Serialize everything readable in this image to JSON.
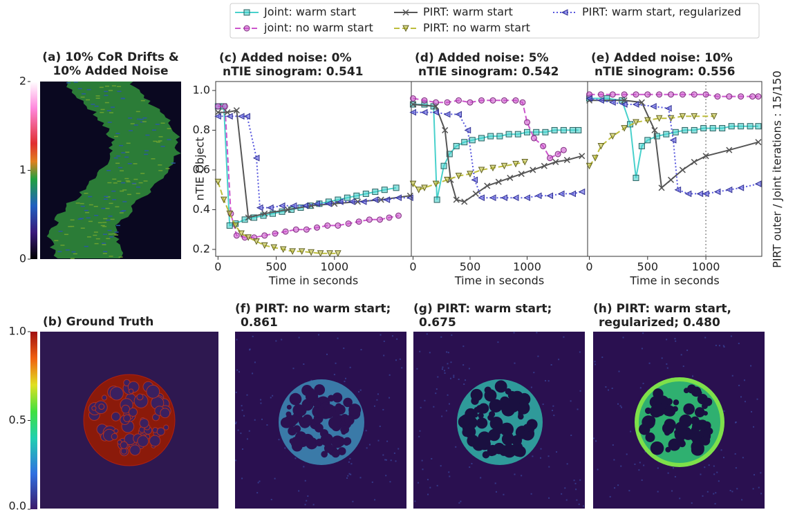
{
  "chart_data": [
    {
      "type": "line",
      "title": [
        "(c) Added noise: 0%",
        "nTIE sinogram: 0.541"
      ],
      "xlabel": "Time in seconds",
      "ylabel": "nTIE Object",
      "xlim": [
        -20,
        1660
      ],
      "ylim": [
        0.165,
        1.045
      ],
      "xticks": [
        0,
        500,
        1000
      ],
      "yticks": [
        0.2,
        0.4,
        0.6,
        0.8,
        {
          "value": 1,
          "label": "1.0"
        }
      ],
      "series": [
        {
          "name": "Joint: warm start",
          "color": "#48d1cc",
          "marker": "square",
          "dash": "solid",
          "x": [
            0,
            50,
            100,
            150,
            230,
            310,
            390,
            470,
            550,
            630,
            710,
            790,
            870,
            950,
            1030,
            1110,
            1190,
            1270,
            1350,
            1430,
            1530
          ],
          "values": [
            0.92,
            0.92,
            0.32,
            0.33,
            0.35,
            0.36,
            0.37,
            0.38,
            0.39,
            0.4,
            0.41,
            0.42,
            0.43,
            0.44,
            0.45,
            0.46,
            0.47,
            0.48,
            0.49,
            0.5,
            0.51
          ]
        },
        {
          "name": "joint: no warm start",
          "color": "#cc55cc",
          "marker": "circle",
          "dash": "dashed",
          "x": [
            0,
            60,
            110,
            160,
            230,
            310,
            400,
            490,
            580,
            670,
            760,
            850,
            940,
            1030,
            1120,
            1210,
            1300,
            1390,
            1470,
            1550
          ],
          "values": [
            0.92,
            0.92,
            0.38,
            0.27,
            0.26,
            0.26,
            0.27,
            0.28,
            0.29,
            0.3,
            0.3,
            0.31,
            0.32,
            0.32,
            0.33,
            0.34,
            0.35,
            0.35,
            0.36,
            0.37
          ]
        },
        {
          "name": "PIRT: warm start",
          "color": "#555555",
          "marker": "cross",
          "dash": "solid",
          "x": [
            0,
            80,
            160,
            260,
            400,
            600,
            800,
            1000,
            1200,
            1400,
            1650
          ],
          "values": [
            0.89,
            0.89,
            0.9,
            0.36,
            0.38,
            0.4,
            0.42,
            0.43,
            0.44,
            0.45,
            0.47
          ]
        },
        {
          "name": "PIRT: no warm start",
          "color": "#bdbd3c",
          "marker": "tri-down",
          "dash": "dashed",
          "x": [
            0,
            50,
            100,
            150,
            200,
            260,
            330,
            400,
            480,
            560,
            640,
            720,
            800,
            880,
            960,
            1030
          ],
          "values": [
            0.54,
            0.45,
            0.38,
            0.32,
            0.28,
            0.26,
            0.24,
            0.22,
            0.21,
            0.2,
            0.19,
            0.19,
            0.185,
            0.18,
            0.18,
            0.18
          ]
        },
        {
          "name": "PIRT: warm start, regularized",
          "color": "#5555dd",
          "marker": "tri-left",
          "dash": "dotted",
          "x": [
            0,
            100,
            200,
            250,
            330,
            360,
            450,
            550,
            650,
            750,
            850,
            950,
            1050,
            1150,
            1250,
            1350,
            1450,
            1550,
            1650
          ],
          "values": [
            0.87,
            0.87,
            0.87,
            0.87,
            0.66,
            0.41,
            0.41,
            0.42,
            0.42,
            0.42,
            0.43,
            0.43,
            0.44,
            0.44,
            0.44,
            0.45,
            0.45,
            0.46,
            0.46
          ]
        }
      ]
    },
    {
      "type": "line",
      "title": [
        "(d) Added noise: 5%",
        "nTIE sinogram: 0.542"
      ],
      "xlabel": "Time in seconds",
      "xlim": [
        -15,
        1530
      ],
      "ylim": [
        0.165,
        1.045
      ],
      "xticks": [
        0,
        500,
        1000
      ],
      "series": [
        {
          "name": "Joint: warm start",
          "color": "#48d1cc",
          "marker": "square",
          "dash": "solid",
          "x": [
            0,
            100,
            180,
            210,
            270,
            320,
            380,
            450,
            520,
            600,
            680,
            760,
            840,
            920,
            1000,
            1080,
            1160,
            1240,
            1320,
            1400,
            1450
          ],
          "values": [
            0.93,
            0.93,
            0.92,
            0.45,
            0.62,
            0.68,
            0.72,
            0.74,
            0.75,
            0.76,
            0.77,
            0.77,
            0.78,
            0.78,
            0.79,
            0.79,
            0.79,
            0.8,
            0.8,
            0.8,
            0.8
          ]
        },
        {
          "name": "joint: no warm start",
          "color": "#cc55cc",
          "marker": "circle",
          "dash": "dashed",
          "x": [
            0,
            100,
            200,
            300,
            400,
            500,
            600,
            700,
            800,
            900,
            960,
            1000,
            1060,
            1140,
            1200,
            1270,
            1320
          ],
          "values": [
            0.96,
            0.95,
            0.94,
            0.94,
            0.95,
            0.94,
            0.95,
            0.95,
            0.95,
            0.95,
            0.94,
            0.84,
            0.76,
            0.72,
            0.66,
            0.68,
            0.7
          ]
        },
        {
          "name": "PIRT: warm start",
          "color": "#555555",
          "marker": "cross",
          "dash": "solid",
          "x": [
            0,
            200,
            280,
            330,
            380,
            450,
            550,
            650,
            750,
            850,
            950,
            1050,
            1150,
            1250,
            1350,
            1480
          ],
          "values": [
            0.93,
            0.92,
            0.8,
            0.55,
            0.45,
            0.44,
            0.48,
            0.52,
            0.54,
            0.56,
            0.58,
            0.6,
            0.62,
            0.64,
            0.65,
            0.67
          ]
        },
        {
          "name": "PIRT: no warm start",
          "color": "#bdbd3c",
          "marker": "tri-down",
          "dash": "dashed",
          "x": [
            0,
            50,
            100,
            200,
            300,
            400,
            500,
            600,
            700,
            800,
            900,
            980
          ],
          "values": [
            0.53,
            0.5,
            0.51,
            0.53,
            0.55,
            0.57,
            0.58,
            0.6,
            0.61,
            0.62,
            0.63,
            0.64
          ]
        },
        {
          "name": "PIRT: warm start, regularized",
          "color": "#5555dd",
          "marker": "tri-left",
          "dash": "dotted",
          "x": [
            0,
            100,
            200,
            300,
            400,
            480,
            540,
            600,
            700,
            800,
            900,
            1000,
            1100,
            1200,
            1300,
            1400,
            1480
          ],
          "values": [
            0.89,
            0.89,
            0.89,
            0.88,
            0.88,
            0.8,
            0.55,
            0.46,
            0.46,
            0.46,
            0.46,
            0.46,
            0.47,
            0.47,
            0.48,
            0.48,
            0.49
          ]
        }
      ]
    },
    {
      "type": "line",
      "title": [
        "(e) Added noise: 10%",
        "nTIE sinogram: 0.556"
      ],
      "xlabel": "Time in seconds",
      "xlim": [
        -15,
        1480
      ],
      "ylim": [
        0.165,
        1.045
      ],
      "xticks": [
        0,
        500,
        1000
      ],
      "vline": 1000,
      "series": [
        {
          "name": "Joint: warm start",
          "color": "#48d1cc",
          "marker": "square",
          "dash": "solid",
          "x": [
            0,
            150,
            280,
            350,
            400,
            450,
            500,
            580,
            660,
            740,
            820,
            900,
            980,
            1060,
            1140,
            1220,
            1300,
            1380,
            1450
          ],
          "values": [
            0.96,
            0.96,
            0.95,
            0.83,
            0.56,
            0.72,
            0.75,
            0.77,
            0.78,
            0.79,
            0.8,
            0.8,
            0.81,
            0.81,
            0.81,
            0.82,
            0.82,
            0.82,
            0.82
          ]
        },
        {
          "name": "joint: no warm start",
          "color": "#cc55cc",
          "marker": "circle",
          "dash": "dashed",
          "x": [
            0,
            100,
            200,
            300,
            400,
            500,
            600,
            700,
            800,
            900,
            1000,
            1100,
            1200,
            1300,
            1400,
            1450
          ],
          "values": [
            0.98,
            0.98,
            0.98,
            0.98,
            0.98,
            0.98,
            0.98,
            0.98,
            0.98,
            0.98,
            0.98,
            0.97,
            0.97,
            0.97,
            0.97,
            0.97
          ]
        },
        {
          "name": "PIRT: warm start",
          "color": "#555555",
          "marker": "cross",
          "dash": "solid",
          "x": [
            0,
            300,
            450,
            560,
            620,
            700,
            800,
            900,
            1000,
            1200,
            1450
          ],
          "values": [
            0.95,
            0.95,
            0.94,
            0.8,
            0.51,
            0.55,
            0.6,
            0.64,
            0.67,
            0.7,
            0.74
          ]
        },
        {
          "name": "PIRT: no warm start",
          "color": "#bdbd3c",
          "marker": "tri-down",
          "dash": "dashed",
          "x": [
            0,
            50,
            100,
            200,
            300,
            400,
            500,
            600,
            700,
            800,
            900,
            1070
          ],
          "values": [
            0.62,
            0.66,
            0.72,
            0.77,
            0.81,
            0.84,
            0.85,
            0.86,
            0.86,
            0.87,
            0.87,
            0.87
          ]
        },
        {
          "name": "PIRT: warm start, regularized",
          "color": "#5555dd",
          "marker": "tri-left",
          "dash": "dotted",
          "x": [
            0,
            100,
            200,
            300,
            400,
            550,
            680,
            720,
            760,
            850,
            950,
            1000,
            1100,
            1200,
            1300,
            1450
          ],
          "values": [
            0.96,
            0.95,
            0.94,
            0.93,
            0.93,
            0.92,
            0.91,
            0.75,
            0.5,
            0.48,
            0.48,
            0.48,
            0.49,
            0.5,
            0.51,
            0.53
          ]
        }
      ]
    }
  ],
  "panels": [
    {
      "title": [
        "(a) 10% CoR Drifts &",
        "10% Added Noise"
      ],
      "colorbar": {
        "ylim": [
          0,
          2
        ],
        "yticks": [
          0,
          1,
          2
        ]
      }
    },
    {
      "title": [
        "(b) Ground Truth"
      ],
      "colorbar": {
        "ylim": [
          0,
          1
        ],
        "yticks": [
          {
            "value": 0,
            "label": "0.0"
          },
          {
            "value": 0.5,
            "label": "0.5"
          },
          {
            "value": 1,
            "label": "1.0"
          }
        ]
      }
    },
    {
      "title": [
        "(f) PIRT: no warm start;",
        "0.861"
      ]
    },
    {
      "title": [
        "(g) PIRT: warm start;",
        "0.675"
      ]
    },
    {
      "title": [
        "(h) PIRT: warm start,",
        "regularized; 0.480"
      ]
    }
  ],
  "side_label": "PIRT outer / Joint iterations : 15/150"
}
